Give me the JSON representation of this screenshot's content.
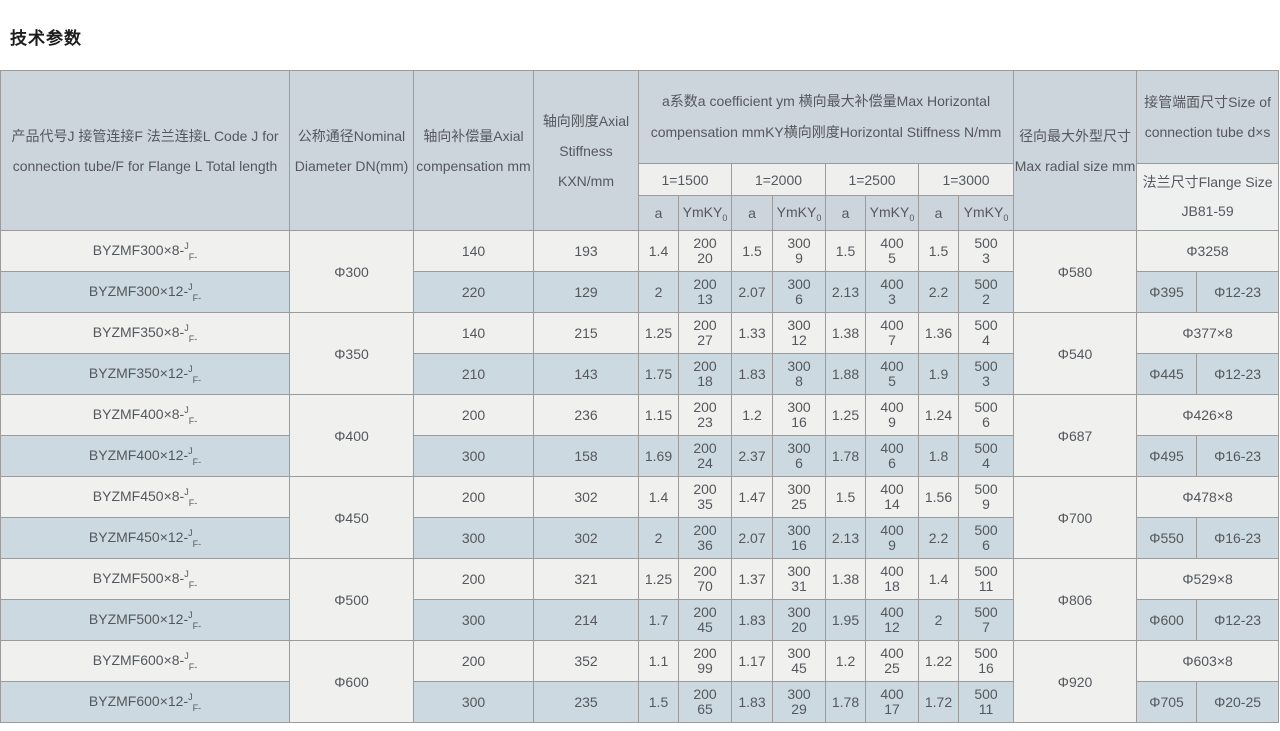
{
  "title": "技术参数",
  "table": {
    "headers": {
      "col_product": "产品代号J 接管连接F 法兰连接L Code J for connection tube/F for Flange L Total length",
      "col_dn": "公称通径Nominal Diameter DN(mm)",
      "col_axial_comp": "轴向补偿量Axial compensation mm",
      "col_axial_stiff": "轴向刚度Axial Stiffness KXN/mm",
      "col_horizontal_group": "a系数a coefficient ym 横向最大补偿量Max Horizontal compensation mmKY横向刚度Horizontal Stiffness N/mm",
      "lengths": [
        "1=1500",
        "1=2000",
        "1=2500",
        "1=3000"
      ],
      "sub_a": "a",
      "sub_ym": "YmKY",
      "sub_ym_zero": "0",
      "col_radial": "径向最大外型尺寸 Max radial size mm",
      "col_tube": "接管端面尺寸Size of connection tube d×s",
      "col_flange": "法兰尺寸Flange Size JB81-59"
    },
    "groups": [
      {
        "dn": "Φ300",
        "radial": "Φ580",
        "tube": "Φ3258",
        "flange_d": "Φ395",
        "flange_holes": "Φ12-23",
        "rows": [
          {
            "code": "BYZMF300×8-",
            "sup": "J",
            "sub": "F-",
            "comp": "140",
            "stiff": "193",
            "cols": [
              {
                "a": "1.4",
                "ym": "200",
                "ky": "20"
              },
              {
                "a": "1.5",
                "ym": "300",
                "ky": "9"
              },
              {
                "a": "1.5",
                "ym": "400",
                "ky": "5"
              },
              {
                "a": "1.5",
                "ym": "500",
                "ky": "3"
              }
            ]
          },
          {
            "code": "BYZMF300×12-",
            "sup": "J",
            "sub": "F-",
            "comp": "220",
            "stiff": "129",
            "cols": [
              {
                "a": "2",
                "ym": "200",
                "ky": "13"
              },
              {
                "a": "2.07",
                "ym": "300",
                "ky": "6"
              },
              {
                "a": "2.13",
                "ym": "400",
                "ky": "3"
              },
              {
                "a": "2.2",
                "ym": "500",
                "ky": "2"
              }
            ]
          }
        ]
      },
      {
        "dn": "Φ350",
        "radial": "Φ540",
        "tube": "Φ377×8",
        "flange_d": "Φ445",
        "flange_holes": "Φ12-23",
        "rows": [
          {
            "code": "BYZMF350×8-",
            "sup": "J",
            "sub": "F-",
            "comp": "140",
            "stiff": "215",
            "cols": [
              {
                "a": "1.25",
                "ym": "200",
                "ky": "27"
              },
              {
                "a": "1.33",
                "ym": "300",
                "ky": "12"
              },
              {
                "a": "1.38",
                "ym": "400",
                "ky": "7"
              },
              {
                "a": "1.36",
                "ym": "500",
                "ky": "4"
              }
            ]
          },
          {
            "code": "BYZMF350×12-",
            "sup": "J",
            "sub": "F-",
            "comp": "210",
            "stiff": "143",
            "cols": [
              {
                "a": "1.75",
                "ym": "200",
                "ky": "18"
              },
              {
                "a": "1.83",
                "ym": "300",
                "ky": "8"
              },
              {
                "a": "1.88",
                "ym": "400",
                "ky": "5"
              },
              {
                "a": "1.9",
                "ym": "500",
                "ky": "3"
              }
            ]
          }
        ]
      },
      {
        "dn": "Φ400",
        "radial": "Φ687",
        "tube": "Φ426×8",
        "flange_d": "Φ495",
        "flange_holes": "Φ16-23",
        "rows": [
          {
            "code": "BYZMF400×8-",
            "sup": "J",
            "sub": "F-",
            "comp": "200",
            "stiff": "236",
            "cols": [
              {
                "a": "1.15",
                "ym": "200",
                "ky": "23"
              },
              {
                "a": "1.2",
                "ym": "300",
                "ky": "16"
              },
              {
                "a": "1.25",
                "ym": "400",
                "ky": "9"
              },
              {
                "a": "1.24",
                "ym": "500",
                "ky": "6"
              }
            ]
          },
          {
            "code": "BYZMF400×12-",
            "sup": "J",
            "sub": "F-",
            "comp": "300",
            "stiff": "158",
            "cols": [
              {
                "a": "1.69",
                "ym": "200",
                "ky": "24"
              },
              {
                "a": "2.37",
                "ym": "300",
                "ky": "6"
              },
              {
                "a": "1.78",
                "ym": "400",
                "ky": "6"
              },
              {
                "a": "1.8",
                "ym": "500",
                "ky": "4"
              }
            ]
          }
        ]
      },
      {
        "dn": "Φ450",
        "radial": "Φ700",
        "tube": "Φ478×8",
        "flange_d": "Φ550",
        "flange_holes": "Φ16-23",
        "rows": [
          {
            "code": "BYZMF450×8-",
            "sup": "J",
            "sub": "F-",
            "comp": "200",
            "stiff": "302",
            "cols": [
              {
                "a": "1.4",
                "ym": "200",
                "ky": "35"
              },
              {
                "a": "1.47",
                "ym": "300",
                "ky": "25"
              },
              {
                "a": "1.5",
                "ym": "400",
                "ky": "14"
              },
              {
                "a": "1.56",
                "ym": "500",
                "ky": "9"
              }
            ]
          },
          {
            "code": "BYZMF450×12-",
            "sup": "J",
            "sub": "F-",
            "comp": "300",
            "stiff": "302",
            "cols": [
              {
                "a": "2",
                "ym": "200",
                "ky": "36"
              },
              {
                "a": "2.07",
                "ym": "300",
                "ky": "16"
              },
              {
                "a": "2.13",
                "ym": "400",
                "ky": "9"
              },
              {
                "a": "2.2",
                "ym": "500",
                "ky": "6"
              }
            ]
          }
        ]
      },
      {
        "dn": "Φ500",
        "radial": "Φ806",
        "tube": "Φ529×8",
        "flange_d": "Φ600",
        "flange_holes": "Φ12-23",
        "rows": [
          {
            "code": "BYZMF500×8-",
            "sup": "J",
            "sub": "F-",
            "comp": "200",
            "stiff": "321",
            "cols": [
              {
                "a": "1.25",
                "ym": "200",
                "ky": "70"
              },
              {
                "a": "1.37",
                "ym": "300",
                "ky": "31"
              },
              {
                "a": "1.38",
                "ym": "400",
                "ky": "18"
              },
              {
                "a": "1.4",
                "ym": "500",
                "ky": "11"
              }
            ]
          },
          {
            "code": "BYZMF500×12-",
            "sup": "J",
            "sub": "F-",
            "comp": "300",
            "stiff": "214",
            "cols": [
              {
                "a": "1.7",
                "ym": "200",
                "ky": "45"
              },
              {
                "a": "1.83",
                "ym": "300",
                "ky": "20"
              },
              {
                "a": "1.95",
                "ym": "400",
                "ky": "12"
              },
              {
                "a": "2",
                "ym": "500",
                "ky": "7"
              }
            ]
          }
        ]
      },
      {
        "dn": "Φ600",
        "radial": "Φ920",
        "tube": "Φ603×8",
        "flange_d": "Φ705",
        "flange_holes": "Φ20-25",
        "rows": [
          {
            "code": "BYZMF600×8-",
            "sup": "J",
            "sub": "F-",
            "comp": "200",
            "stiff": "352",
            "cols": [
              {
                "a": "1.1",
                "ym": "200",
                "ky": "99"
              },
              {
                "a": "1.17",
                "ym": "300",
                "ky": "45"
              },
              {
                "a": "1.2",
                "ym": "400",
                "ky": "25"
              },
              {
                "a": "1.22",
                "ym": "500",
                "ky": "16"
              }
            ]
          },
          {
            "code": "BYZMF600×12-",
            "sup": "J",
            "sub": "F-",
            "comp": "300",
            "stiff": "235",
            "cols": [
              {
                "a": "1.5",
                "ym": "200",
                "ky": "65"
              },
              {
                "a": "1.83",
                "ym": "300",
                "ky": "29"
              },
              {
                "a": "1.78",
                "ym": "400",
                "ky": "17"
              },
              {
                "a": "1.72",
                "ym": "500",
                "ky": "11"
              }
            ]
          }
        ]
      }
    ]
  }
}
